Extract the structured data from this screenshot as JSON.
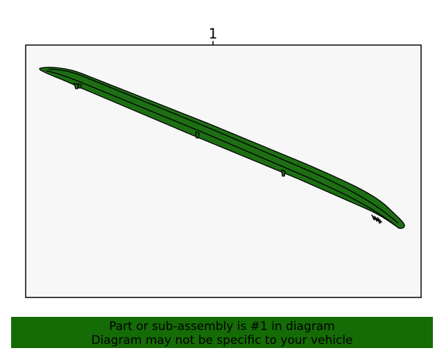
{
  "diagram": {
    "callouts": [
      {
        "label": "1"
      }
    ]
  },
  "banner": {
    "lines": [
      "Part or sub-assembly is #1 in diagram",
      "Diagram may not be specific to your vehicle"
    ]
  }
}
